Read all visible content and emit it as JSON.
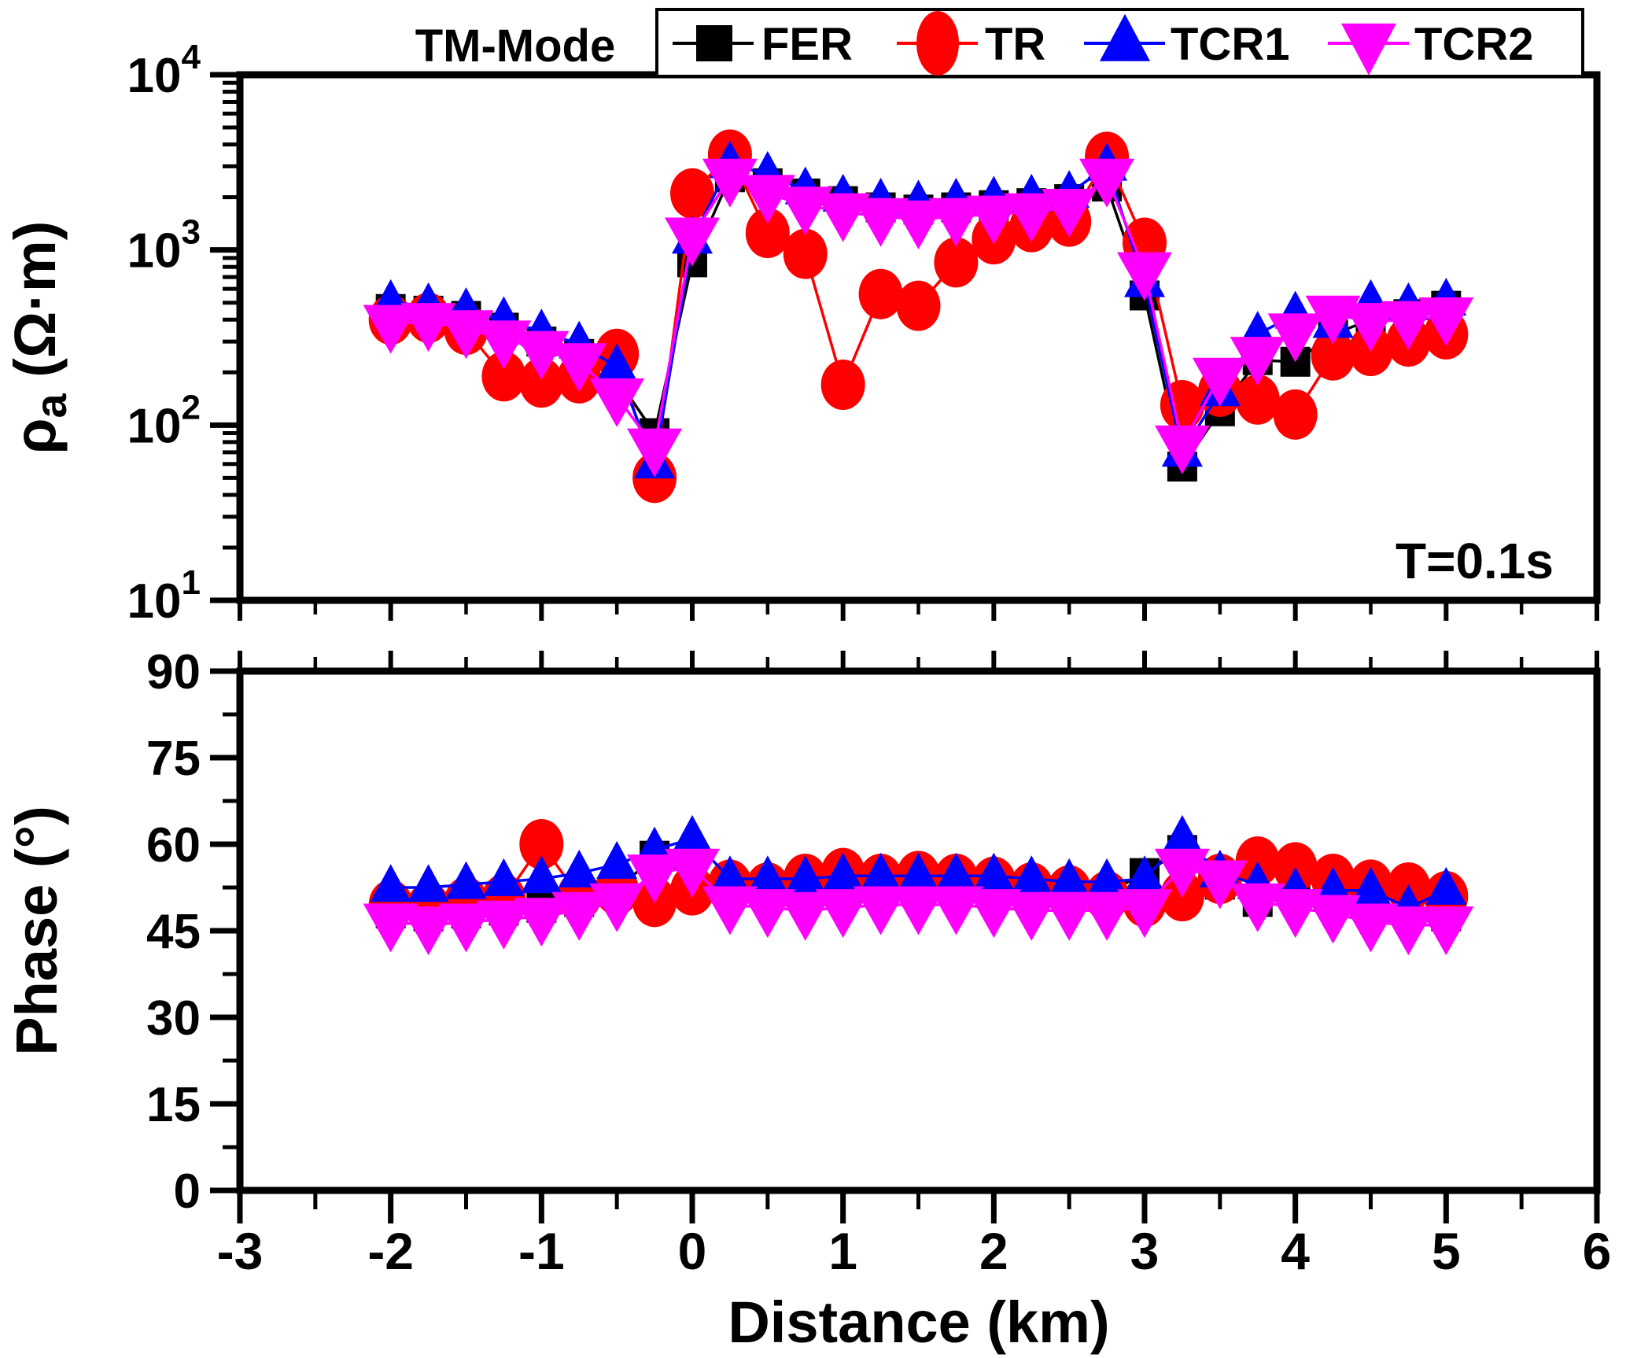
{
  "title": "TM-Mode",
  "annotation": "T=0.1s",
  "axes": {
    "top_ylabel_sym": "ρ",
    "top_ylabel_sub": "a",
    "top_ylabel_rest": " (Ω·m)",
    "bottom_ylabel": "Phase (°)",
    "xlabel": "Distance (km)"
  },
  "colors": {
    "FER": "#000000",
    "TR": "#ff0000",
    "TCR1": "#0000ff",
    "TCR2": "#ff00ff"
  },
  "chart_data": [
    {
      "type": "line",
      "title": "TM-Mode",
      "annotation": "T=0.1s",
      "ylabel": "ρa (Ω·m)",
      "yscale": "log",
      "ylim": [
        10,
        10000
      ],
      "ytick_exponents": [
        1,
        2,
        3,
        4
      ],
      "xlim": [
        -3,
        6
      ],
      "grid": false,
      "legend_position": "top",
      "x": [
        -2.0,
        -1.75,
        -1.5,
        -1.25,
        -1.0,
        -0.75,
        -0.5,
        -0.25,
        0,
        0.25,
        0.5,
        0.75,
        1.0,
        1.25,
        1.5,
        1.75,
        2.0,
        2.25,
        2.5,
        2.75,
        3.0,
        3.25,
        3.5,
        3.75,
        4.0,
        4.25,
        4.5,
        4.75,
        5.0
      ],
      "series": [
        {
          "name": "FER",
          "color": "#000000",
          "marker": "square",
          "values": [
            460,
            450,
            420,
            360,
            300,
            255,
            185,
            90,
            850,
            2600,
            2400,
            2100,
            1900,
            1750,
            1700,
            1750,
            1800,
            1850,
            1950,
            2300,
            550,
            58,
            120,
            235,
            230,
            330,
            400,
            430,
            480
          ]
        },
        {
          "name": "TR",
          "color": "#ff0000",
          "marker": "circle",
          "values": [
            400,
            410,
            350,
            190,
            175,
            185,
            255,
            50,
            2100,
            3500,
            1250,
            950,
            170,
            560,
            480,
            850,
            1150,
            1350,
            1450,
            3400,
            1100,
            130,
            155,
            140,
            115,
            250,
            265,
            300,
            330
          ]
        },
        {
          "name": "TCR1",
          "color": "#0000ff",
          "marker": "triangle-up",
          "values": [
            500,
            480,
            450,
            400,
            340,
            290,
            215,
            60,
            1150,
            3100,
            2700,
            2200,
            2000,
            1900,
            1850,
            1900,
            1950,
            2000,
            2100,
            3000,
            650,
            70,
            155,
            330,
            430,
            380,
            500,
            480,
            510
          ]
        },
        {
          "name": "TCR2",
          "color": "#ff00ff",
          "marker": "triangle-down",
          "values": [
            380,
            390,
            355,
            310,
            270,
            230,
            145,
            75,
            1200,
            2600,
            2100,
            1800,
            1650,
            1550,
            1500,
            1550,
            1600,
            1650,
            1750,
            2600,
            760,
            78,
            190,
            250,
            340,
            430,
            390,
            400,
            420
          ]
        }
      ]
    },
    {
      "type": "line",
      "ylabel": "Phase (°)",
      "ylim": [
        0,
        90
      ],
      "yticks": [
        0,
        15,
        30,
        45,
        60,
        75,
        90
      ],
      "xlabel": "Distance (km)",
      "xticks": [
        -3,
        -2,
        -1,
        0,
        1,
        2,
        3,
        4,
        5,
        6
      ],
      "xlim": [
        -3,
        6
      ],
      "grid": false,
      "x": [
        -2.0,
        -1.75,
        -1.5,
        -1.25,
        -1.0,
        -0.75,
        -0.5,
        -0.25,
        0,
        0.25,
        0.5,
        0.75,
        1.0,
        1.25,
        1.5,
        1.75,
        2.0,
        2.25,
        2.5,
        2.75,
        3.0,
        3.25,
        3.5,
        3.75,
        4.0,
        4.25,
        4.5,
        4.75,
        5.0
      ],
      "series": [
        {
          "name": "FER",
          "color": "#000000",
          "marker": "square",
          "values": [
            48,
            47.5,
            48,
            48.5,
            49,
            50,
            52,
            58,
            54,
            52,
            51.5,
            51,
            51.5,
            52,
            52,
            52,
            51.5,
            51,
            51,
            51.5,
            55,
            59,
            53,
            50,
            51,
            50,
            48.5,
            48,
            47.5
          ]
        },
        {
          "name": "TR",
          "color": "#ff0000",
          "marker": "circle",
          "values": [
            49.5,
            49,
            50,
            50.5,
            60,
            51,
            52,
            50,
            52,
            53,
            52.5,
            54,
            55,
            54,
            54.5,
            54,
            53.5,
            52.5,
            52,
            51,
            50,
            51,
            54,
            57,
            56,
            54,
            53,
            52.5,
            51
          ]
        },
        {
          "name": "TCR1",
          "color": "#0000ff",
          "marker": "triangle-up",
          "values": [
            52.5,
            52.5,
            53,
            53.5,
            54,
            55,
            56.5,
            59,
            61,
            54,
            54,
            54,
            54.5,
            54.5,
            54.5,
            54.5,
            54.5,
            54,
            53.5,
            53.5,
            54,
            61,
            55,
            53,
            52,
            52,
            52,
            49,
            52
          ]
        },
        {
          "name": "TCR2",
          "color": "#ff00ff",
          "marker": "triangle-down",
          "values": [
            46.5,
            46,
            46.5,
            47,
            47.5,
            48.5,
            50,
            55,
            56,
            49.5,
            49,
            48.5,
            49,
            49.5,
            49.5,
            49.5,
            49,
            48.5,
            48.5,
            48.5,
            49,
            56,
            54,
            50,
            49,
            48,
            46.5,
            46,
            46
          ]
        }
      ]
    }
  ]
}
